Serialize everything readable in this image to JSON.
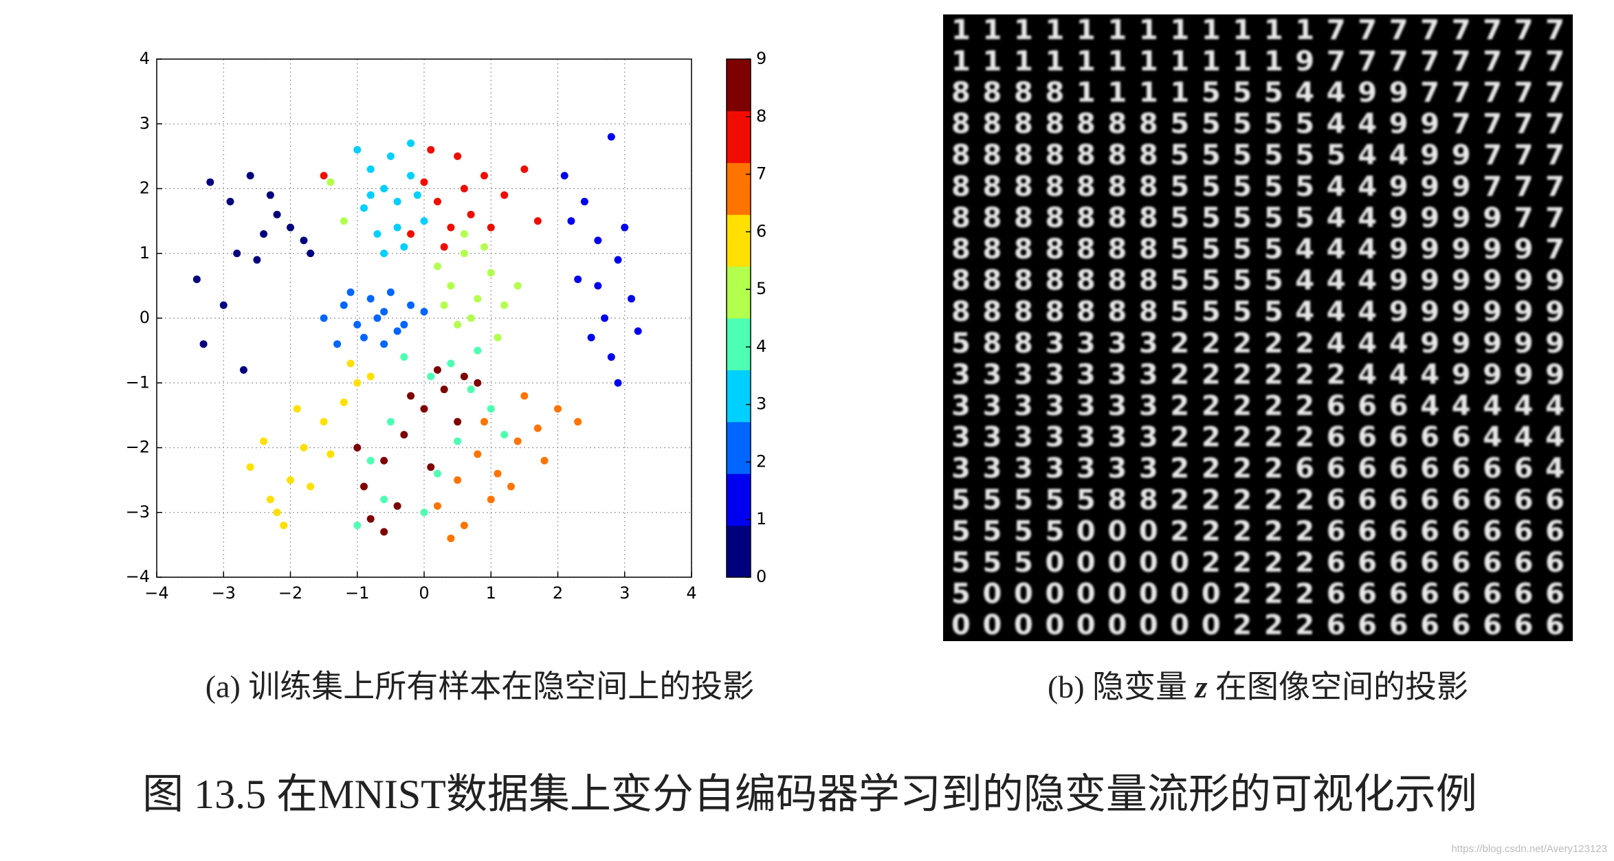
{
  "chart_data": {
    "type": "scatter",
    "xlim": [
      -4,
      4
    ],
    "ylim": [
      -4,
      4
    ],
    "xticks": [
      {
        "value": -4,
        "label": "−4"
      },
      {
        "value": -3,
        "label": "−3"
      },
      {
        "value": -2,
        "label": "−2"
      },
      {
        "value": -1,
        "label": "−1"
      },
      0,
      1,
      2,
      3,
      4
    ],
    "yticks": [
      {
        "value": -4,
        "label": "−4"
      },
      {
        "value": -3,
        "label": "−3"
      },
      {
        "value": -2,
        "label": "−2"
      },
      {
        "value": -1,
        "label": "−1"
      },
      0,
      1,
      2,
      3,
      4
    ],
    "grid": true,
    "colorbar": {
      "lim": [
        0,
        9
      ],
      "ticks": [
        0,
        1,
        2,
        3,
        4,
        5,
        6,
        7,
        8,
        9
      ],
      "colors": [
        "#00007f",
        "#0000f0",
        "#0066ff",
        "#00d0ff",
        "#4dffb2",
        "#b2ff4d",
        "#ffe000",
        "#ff7400",
        "#f00d00",
        "#7f0000"
      ]
    },
    "series": [
      {
        "color": "#00007f",
        "x": [
          -3.2,
          -2.9,
          -2.6,
          -2.3,
          -2.0,
          -1.8,
          -2.8,
          -3.4,
          -3.0,
          -2.5,
          -2.2,
          -3.3,
          -2.7,
          -1.7,
          -2.4
        ],
        "y": [
          2.1,
          1.8,
          2.2,
          1.9,
          1.4,
          1.2,
          1.0,
          0.6,
          0.2,
          0.9,
          1.6,
          -0.4,
          -0.8,
          1.0,
          1.3
        ]
      },
      {
        "color": "#0000f0",
        "x": [
          2.1,
          2.4,
          2.6,
          2.9,
          3.1,
          2.7,
          2.5,
          2.8,
          3.2,
          2.3,
          2.9,
          3.0,
          2.6,
          2.2,
          2.8
        ],
        "y": [
          2.2,
          1.8,
          1.2,
          0.9,
          0.3,
          0.0,
          -0.3,
          -0.6,
          -0.2,
          0.6,
          -1.0,
          1.4,
          0.5,
          1.5,
          2.8
        ]
      },
      {
        "color": "#0066ff",
        "x": [
          -1.5,
          -1.2,
          -1.0,
          -0.8,
          -0.6,
          -0.4,
          -0.2,
          -0.9,
          -0.5,
          -1.1,
          -0.7,
          -0.3,
          -1.3,
          0.0,
          -0.6
        ],
        "y": [
          0.0,
          0.2,
          -0.1,
          0.3,
          0.1,
          -0.2,
          0.2,
          -0.3,
          0.4,
          0.4,
          0.0,
          -0.1,
          -0.4,
          0.1,
          -0.4
        ]
      },
      {
        "color": "#00d0ff",
        "x": [
          -1.0,
          -0.8,
          -0.6,
          -0.4,
          -0.2,
          0.0,
          -0.7,
          -0.3,
          -0.5,
          -0.9,
          -0.1,
          -0.6,
          -0.2,
          -0.8,
          -0.4
        ],
        "y": [
          2.6,
          2.3,
          2.0,
          1.8,
          2.2,
          1.5,
          1.3,
          1.1,
          2.5,
          1.7,
          1.9,
          1.0,
          2.7,
          1.9,
          1.4
        ]
      },
      {
        "color": "#4dffb2",
        "x": [
          -0.8,
          -0.5,
          -0.2,
          0.1,
          0.4,
          0.7,
          1.0,
          -0.6,
          0.2,
          0.5,
          -0.3,
          0.8,
          0.0,
          1.2,
          -1.0
        ],
        "y": [
          -2.2,
          -1.6,
          -1.2,
          -0.9,
          -0.7,
          -1.1,
          -1.4,
          -2.8,
          -2.4,
          -1.9,
          -0.6,
          -0.5,
          -3.0,
          -1.8,
          -3.2
        ]
      },
      {
        "color": "#b2ff4d",
        "x": [
          0.2,
          0.4,
          0.6,
          0.8,
          1.0,
          1.2,
          0.5,
          0.9,
          1.4,
          0.3,
          0.7,
          1.1,
          -1.4,
          -1.2,
          0.6
        ],
        "y": [
          0.8,
          0.5,
          1.0,
          0.3,
          0.7,
          0.2,
          -0.1,
          1.1,
          0.5,
          0.2,
          0.0,
          -0.3,
          2.1,
          1.5,
          1.3
        ]
      },
      {
        "color": "#ffe000",
        "x": [
          -2.6,
          -2.3,
          -2.0,
          -1.8,
          -1.5,
          -1.2,
          -1.0,
          -2.2,
          -1.7,
          -1.4,
          -2.4,
          -1.9,
          -1.1,
          -2.1,
          -0.8
        ],
        "y": [
          -2.3,
          -2.8,
          -2.5,
          -2.0,
          -1.6,
          -1.3,
          -1.0,
          -3.0,
          -2.6,
          -2.1,
          -1.9,
          -1.4,
          -0.7,
          -3.2,
          -0.9
        ]
      },
      {
        "color": "#ff7400",
        "x": [
          0.2,
          0.5,
          0.8,
          1.1,
          1.4,
          1.7,
          2.0,
          2.3,
          0.6,
          1.0,
          1.3,
          0.4,
          1.8,
          0.9,
          1.5
        ],
        "y": [
          -2.9,
          -2.5,
          -2.1,
          -2.4,
          -1.9,
          -1.7,
          -1.4,
          -1.6,
          -3.2,
          -2.8,
          -2.6,
          -3.4,
          -2.2,
          -1.6,
          -1.2
        ]
      },
      {
        "color": "#f00d00",
        "x": [
          0.0,
          0.2,
          0.4,
          0.6,
          0.9,
          1.2,
          1.5,
          0.3,
          0.7,
          0.1,
          1.0,
          -0.2,
          0.5,
          1.7,
          -1.5
        ],
        "y": [
          2.1,
          1.8,
          1.4,
          2.0,
          2.2,
          1.9,
          2.3,
          1.1,
          1.6,
          2.6,
          1.4,
          1.3,
          2.5,
          1.5,
          2.2
        ]
      },
      {
        "color": "#7f0000",
        "x": [
          -0.9,
          -0.6,
          -0.3,
          0.0,
          0.3,
          0.6,
          -0.8,
          -0.4,
          0.1,
          0.5,
          -1.0,
          -0.2,
          0.8,
          -0.6,
          0.2
        ],
        "y": [
          -2.6,
          -2.2,
          -1.8,
          -1.4,
          -1.1,
          -0.9,
          -3.1,
          -2.9,
          -2.3,
          -1.6,
          -2.0,
          -1.2,
          -1.0,
          -3.3,
          -0.8
        ]
      }
    ],
    "caption": "(a) 训练集上所有样本在隐空间上的投影"
  },
  "panel_b": {
    "rows": [
      "11111111111177777777",
      "11111111111977777777",
      "88881111555449977777",
      "88888885555544997777",
      "88888885555554499777",
      "88888885555544999777",
      "88888885555544999977",
      "88888885555444999997",
      "88888885555444999999",
      "88888885555444999999",
      "58833332222244499999",
      "33333332222224449999",
      "33333332222266644444",
      "33333332222266666444",
      "33333332222666666664",
      "55555882222266666666",
      "55550002222266666666",
      "55500000222266666666",
      "50000000022266666666",
      "00000000022266666666"
    ],
    "caption": [
      "(b) 隐变量 ",
      "z",
      " 在图像空间的投影"
    ]
  },
  "figure_caption": "图 13.5 在MNIST数据集上变分自编码器学习到的隐变量流形的可视化示例",
  "watermark": "https://blog.csdn.net/Avery123123"
}
